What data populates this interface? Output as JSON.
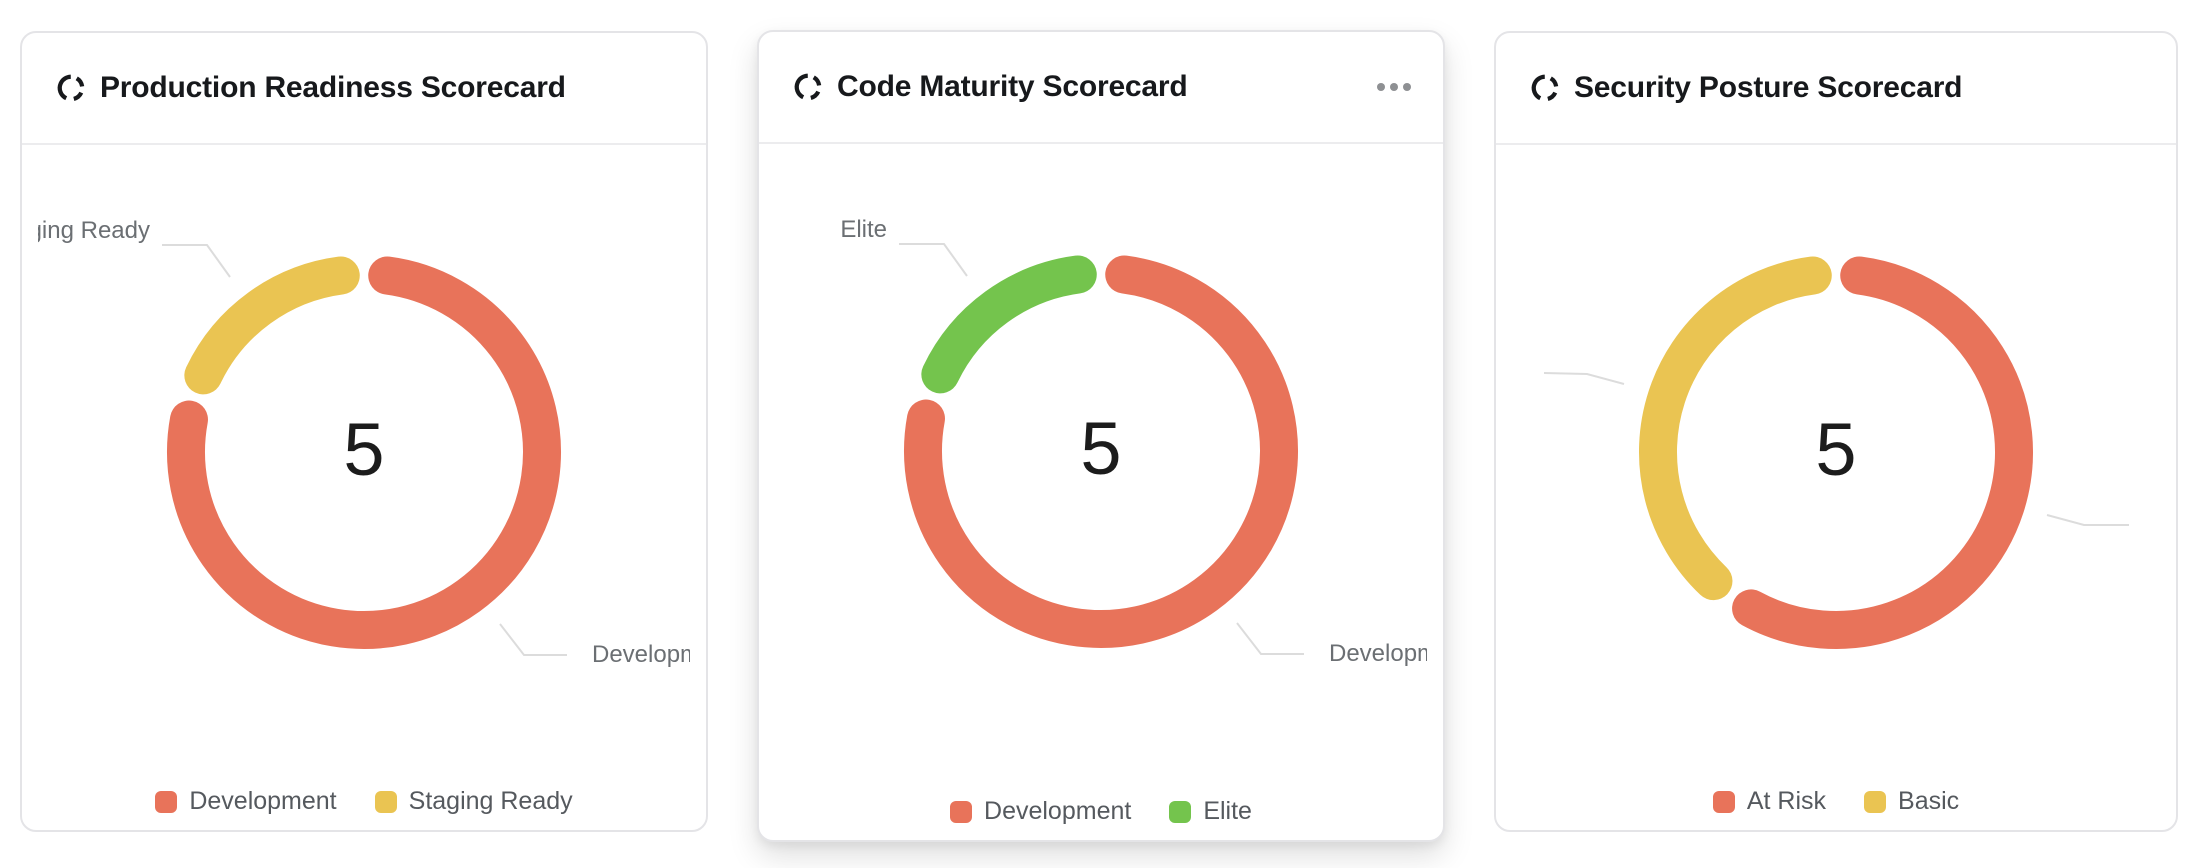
{
  "page": {
    "background": "#FFFFFF"
  },
  "cards": [
    {
      "id": "production-readiness",
      "title": "Production Readiness Scorecard",
      "icon": "donut-chart-icon",
      "menu_visible": false,
      "center_value": "5",
      "callouts": [
        {
          "label": "Staging Ready",
          "position": "top-left",
          "clipped": "left-edge"
        },
        {
          "label": "Development",
          "position": "bottom-right",
          "clipped": "right-edge"
        }
      ],
      "legend": [
        {
          "label": "Development",
          "color": "#E8735A"
        },
        {
          "label": "Staging Ready",
          "color": "#EAC452"
        }
      ]
    },
    {
      "id": "code-maturity",
      "title": "Code Maturity Scorecard",
      "icon": "donut-chart-icon",
      "menu_visible": true,
      "menu_icon": "ellipsis-icon",
      "center_value": "5",
      "callouts": [
        {
          "label": "Elite",
          "position": "top-left"
        },
        {
          "label": "Development",
          "position": "bottom-right",
          "clipped": "right-edge"
        }
      ],
      "legend": [
        {
          "label": "Development",
          "color": "#E8735A"
        },
        {
          "label": "Elite",
          "color": "#74C44D"
        }
      ]
    },
    {
      "id": "security-posture",
      "title": "Security Posture Scorecard",
      "icon": "donut-chart-icon",
      "menu_visible": false,
      "center_value": "5",
      "callouts": [
        {
          "label": "",
          "position": "left-middle",
          "clipped": "fully-hidden"
        },
        {
          "label": "",
          "position": "right-middle",
          "clipped": "fully-hidden"
        }
      ],
      "legend": [
        {
          "label": "At Risk",
          "color": "#E8735A"
        },
        {
          "label": "Basic",
          "color": "#EAC452"
        }
      ]
    }
  ],
  "chart_data": [
    {
      "type": "pie",
      "variant": "donut",
      "title": "Production Readiness Scorecard",
      "center_label": "5",
      "total": 5,
      "segments": [
        {
          "name": "Development",
          "value": 4,
          "color": "#E8735A"
        },
        {
          "name": "Staging Ready",
          "value": 1,
          "color": "#EAC452"
        }
      ],
      "legend_position": "bottom",
      "start_angle_deg_clockwise_from_top": 0
    },
    {
      "type": "pie",
      "variant": "donut",
      "title": "Code Maturity Scorecard",
      "center_label": "5",
      "total": 5,
      "segments": [
        {
          "name": "Development",
          "value": 4,
          "color": "#E8735A"
        },
        {
          "name": "Elite",
          "value": 1,
          "color": "#74C44D"
        }
      ],
      "legend_position": "bottom",
      "start_angle_deg_clockwise_from_top": 0
    },
    {
      "type": "pie",
      "variant": "donut",
      "title": "Security Posture Scorecard",
      "center_label": "5",
      "total": 5,
      "segments": [
        {
          "name": "At Risk",
          "value": 3,
          "color": "#E8735A"
        },
        {
          "name": "Basic",
          "value": 2,
          "color": "#EAC452"
        }
      ],
      "legend_position": "bottom",
      "start_angle_deg_clockwise_from_top": 0
    }
  ],
  "colors": {
    "card_border": "#E4E4E7",
    "divider": "#ECECEE",
    "title_text": "#17191C",
    "legend_text": "#55595E",
    "callout_text": "#6B6F73",
    "leader_line": "#DCDCDC",
    "center_value_text": "#1C1C1C",
    "menu_dots": "#8E9093",
    "series_red": "#E8735A",
    "series_yellow": "#EAC452",
    "series_green": "#74C44D"
  }
}
